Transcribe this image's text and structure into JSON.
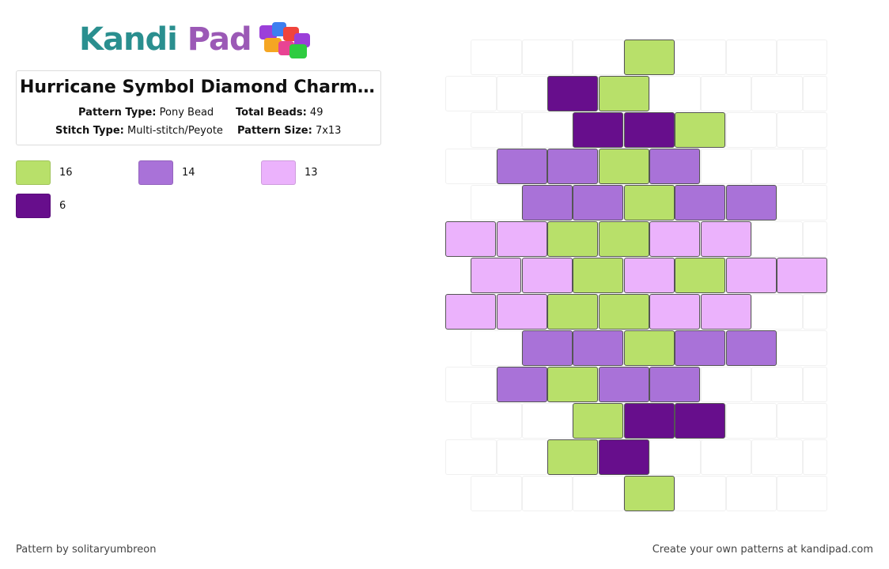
{
  "brand": {
    "logo_text_kandi": "Kandi",
    "logo_text_pad": "Pad"
  },
  "pattern": {
    "title": "Hurricane Symbol Diamond Charm -...",
    "type_label": "Pattern Type:",
    "type_value": "Pony Bead",
    "total_label": "Total Beads:",
    "total_value": "49",
    "stitch_label": "Stitch Type:",
    "stitch_value": "Multi-stitch/Peyote",
    "size_label": "Pattern Size:",
    "size_value": "7x13"
  },
  "palette": [
    {
      "color": "#b8e06a",
      "count": "16"
    },
    {
      "color": "#a972d8",
      "count": "14"
    },
    {
      "color": "#ebb2fc",
      "count": "13"
    },
    {
      "color": "#670e8c",
      "count": "6"
    }
  ],
  "bead_colors": {
    "G": "#b8e06a",
    "M": "#a972d8",
    "L": "#ebb2fc",
    "D": "#670e8c"
  },
  "bead_rows": [
    "...G",
    "..DG",
    "..DDG",
    ".MMGM",
    ".MMGMM",
    "LLGGLL",
    "LLGLGLL",
    "LLGGLL",
    ".MMGMM",
    ".MGMM",
    "..GDD",
    "..GD",
    "...G"
  ],
  "footer": {
    "credit": "Pattern by solitaryumbreon",
    "promo": "Create your own patterns at kandipad.com"
  }
}
